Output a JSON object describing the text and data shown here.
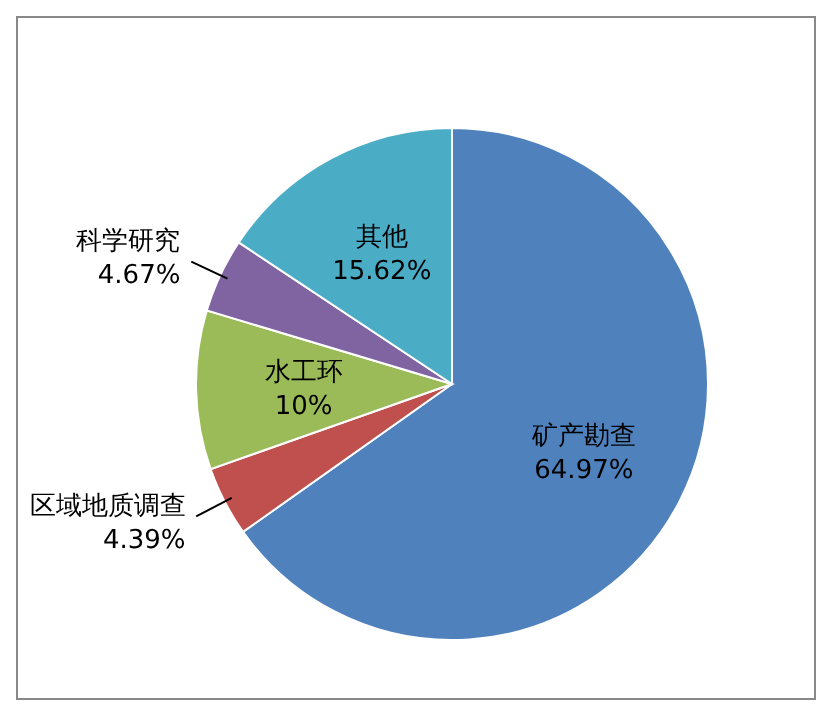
{
  "chart_data": {
    "type": "pie",
    "categories": [
      "矿产勘查",
      "区域地质调查",
      "水工环",
      "科学研究",
      "其他"
    ],
    "values": [
      64.97,
      4.39,
      10,
      4.67,
      15.62
    ],
    "colors": [
      "#4f81bd",
      "#c0504d",
      "#9bbb59",
      "#8064a2",
      "#4bacc6"
    ],
    "value_labels": [
      "64.97%",
      "4.39%",
      "10%",
      "4.67%",
      "15.62%"
    ],
    "legend": false
  }
}
